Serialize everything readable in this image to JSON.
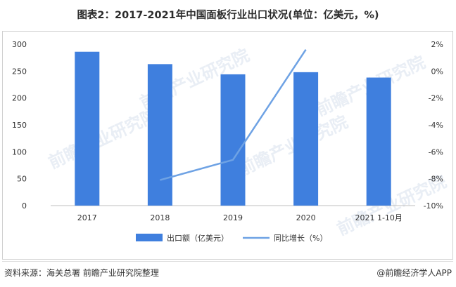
{
  "title": "图表2：2017-2021年中国面板行业出口状况(单位：亿美元，%)",
  "source": "资料来源：海关总署 前瞻产业研究院整理",
  "brand": "@前瞻经济学人APP",
  "watermark": "前瞻产业研究院",
  "chart_data": {
    "type": "bar",
    "categories": [
      "2017",
      "2018",
      "2019",
      "2020",
      "2021 1-10月"
    ],
    "series": [
      {
        "name": "出口额（亿美元）",
        "type": "bar",
        "axis": "left",
        "color": "#3f7fde",
        "values": [
          286,
          263,
          244,
          248,
          238
        ]
      },
      {
        "name": "同比增长（%）",
        "type": "line",
        "axis": "right",
        "color": "#6ea2e4",
        "values": [
          null,
          -8.1,
          -6.6,
          1.6,
          null
        ]
      }
    ],
    "y_left": {
      "ylim": [
        0,
        300
      ],
      "ticks": [
        "0",
        "50",
        "100",
        "150",
        "200",
        "250",
        "300"
      ]
    },
    "y_right": {
      "ylim": [
        -10,
        2
      ],
      "ticks": [
        "-10%",
        "-8%",
        "-6%",
        "-4%",
        "-2%",
        "0%",
        "2%"
      ]
    },
    "grid": false,
    "legend_position": "bottom"
  }
}
